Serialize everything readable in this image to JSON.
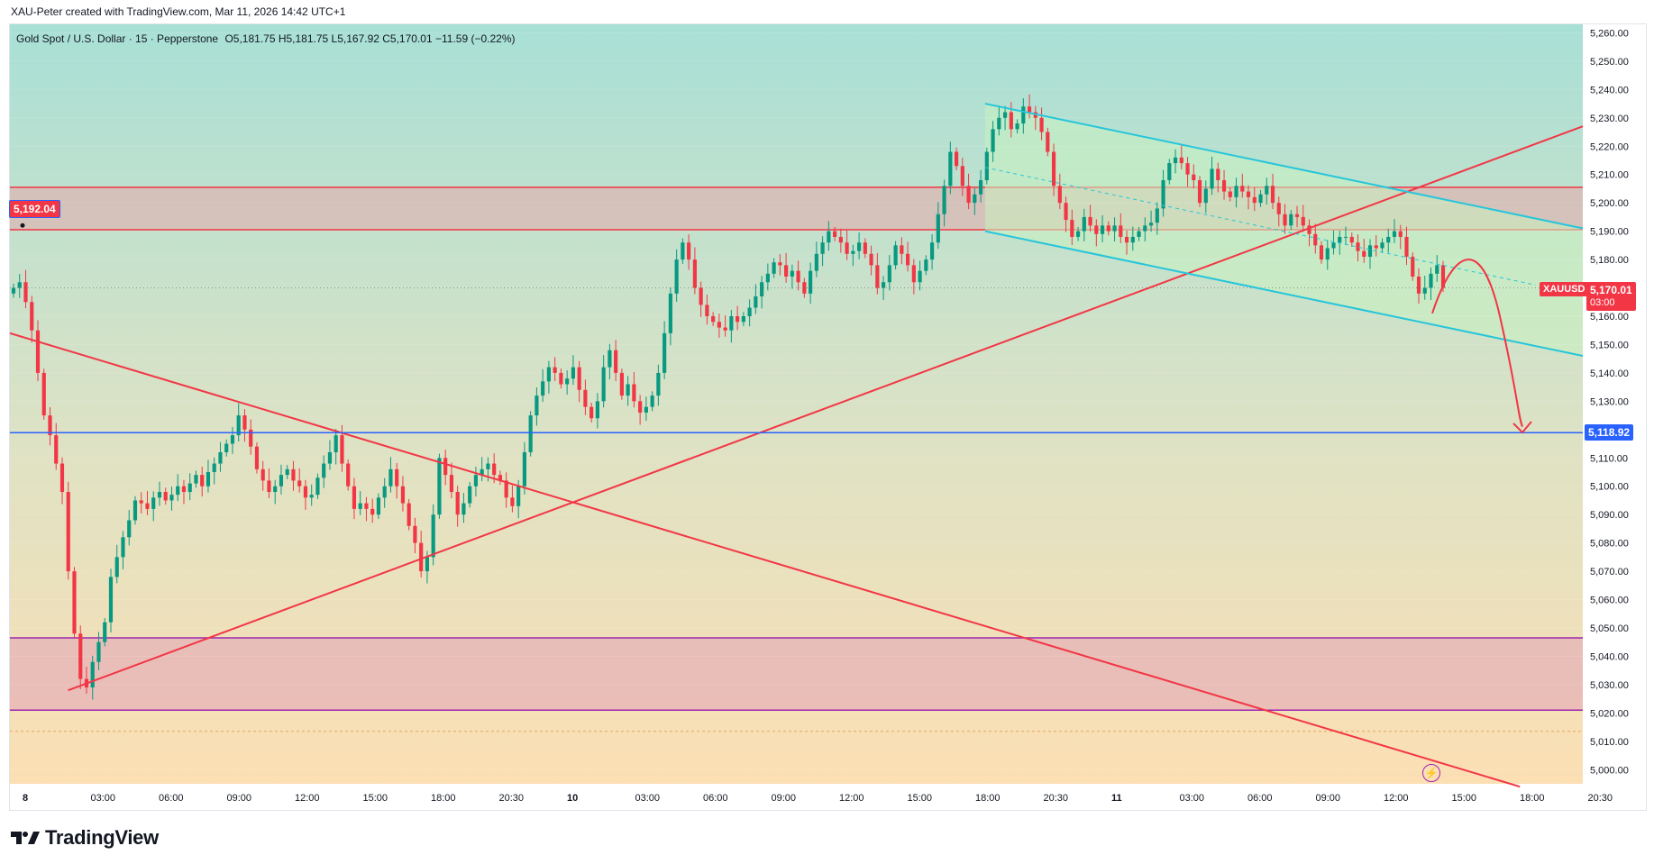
{
  "header": {
    "credit": "XAU-Peter created with TradingView.com, Mar 11, 2026 14:42 UTC+1"
  },
  "info": {
    "symbol_line": "Gold Spot / U.S. Dollar · 15 · Pepperstone",
    "ohlc": "O5,181.75  H5,181.75  L5,167.92  C5,170.01  −11.59 (−0.22%)"
  },
  "footer": {
    "brand": "TradingView",
    "logo_icon": "tradingview-logo-icon"
  },
  "colors": {
    "bg_top": "#a8e0d6",
    "bg_bottom": "#fbe0b4",
    "up": "#089981",
    "down": "#f23645",
    "red_line": "#f23645",
    "cyan_line": "#26c6da",
    "blue_line": "#2962ff",
    "purple_line": "#9c27b0",
    "resistance_zone": "#e8b8b8",
    "support_zone": "#e8b8c8"
  },
  "chart_data": {
    "type": "candlestick",
    "symbol": "XAUUSD",
    "interval": "15",
    "y_axis": {
      "ticks": [
        "5,260.00",
        "5,250.00",
        "5,240.00",
        "5,230.00",
        "5,220.00",
        "5,210.00",
        "5,200.00",
        "5,190.00",
        "5,180.00",
        "5,170.00",
        "5,160.00",
        "5,150.00",
        "5,140.00",
        "5,130.00",
        "5,120.00",
        "5,110.00",
        "5,100.00",
        "5,090.00",
        "5,080.00",
        "5,070.00",
        "5,060.00",
        "5,050.00",
        "5,040.00",
        "5,030.00",
        "5,020.00",
        "5,010.00",
        "5,000.00"
      ],
      "range": [
        4995,
        5263
      ]
    },
    "x_axis": {
      "ticks": [
        "8",
        "03:00",
        "06:00",
        "09:00",
        "12:00",
        "15:00",
        "18:00",
        "20:30",
        "10",
        "03:00",
        "06:00",
        "09:00",
        "12:00",
        "15:00",
        "18:00",
        "20:30",
        "11",
        "03:00",
        "06:00",
        "09:00",
        "12:00",
        "15:00",
        "18:00",
        "20:30"
      ],
      "bold_ticks": [
        "8",
        "10",
        "11"
      ]
    },
    "last_price": {
      "label": "XAUUSD",
      "value": "5,170.01",
      "countdown": "03:00",
      "price": 5170.01
    },
    "left_price_tag": {
      "value": "5,192.04",
      "price": 5192.04
    },
    "blue_level": {
      "value": "5,118.92",
      "price": 5118.92
    },
    "resistance_zone": [
      5190.5,
      5205.5
    ],
    "support_zone": [
      5021,
      5046.5
    ],
    "dashed_level": 5013.5,
    "trendlines": [
      {
        "name": "rising-trendline",
        "from": [
          0.037,
          5028
        ],
        "to": [
          1.0,
          5227
        ]
      },
      {
        "name": "falling-trendline",
        "from": [
          0.0,
          5154
        ],
        "to": [
          0.96,
          4994
        ]
      }
    ],
    "channel": {
      "upper": {
        "from": [
          0.62,
          5235
        ],
        "to": [
          1.0,
          5191
        ]
      },
      "lower": {
        "from": [
          0.62,
          5190
        ],
        "to": [
          1.0,
          5146
        ]
      },
      "mid": {
        "from": [
          0.62,
          5212.5
        ],
        "to": [
          0.97,
          5171
        ]
      }
    },
    "forecast_target": 5118.92,
    "closes": [
      5170,
      5172,
      5165,
      5155,
      5140,
      5125,
      5118,
      5108,
      5098,
      5070,
      5048,
      5032,
      5029,
      5038,
      5045,
      5052,
      5068,
      5075,
      5082,
      5088,
      5095,
      5094,
      5092,
      5096,
      5098,
      5095,
      5097,
      5100,
      5098,
      5101,
      5104,
      5100,
      5105,
      5108,
      5112,
      5115,
      5118,
      5125,
      5120,
      5114,
      5106,
      5102,
      5098,
      5100,
      5104,
      5106,
      5102,
      5100,
      5096,
      5097,
      5103,
      5108,
      5112,
      5118,
      5108,
      5100,
      5092,
      5094,
      5092,
      5090,
      5096,
      5100,
      5106,
      5100,
      5094,
      5086,
      5080,
      5070,
      5075,
      5090,
      5110,
      5104,
      5098,
      5090,
      5094,
      5100,
      5104,
      5106,
      5108,
      5104,
      5102,
      5096,
      5093,
      5100,
      5112,
      5125,
      5132,
      5137,
      5142,
      5140,
      5136,
      5138,
      5142,
      5134,
      5128,
      5124,
      5130,
      5142,
      5148,
      5140,
      5132,
      5136,
      5130,
      5126,
      5128,
      5132,
      5140,
      5154,
      5168,
      5180,
      5186,
      5180,
      5170,
      5164,
      5160,
      5158,
      5156,
      5155,
      5160,
      5158,
      5160,
      5163,
      5167,
      5172,
      5175,
      5179,
      5178,
      5174,
      5176,
      5172,
      5168,
      5176,
      5182,
      5186,
      5190,
      5188,
      5186,
      5182,
      5183,
      5186,
      5182,
      5178,
      5170,
      5172,
      5178,
      5185,
      5182,
      5178,
      5172,
      5176,
      5180,
      5186,
      5196,
      5206,
      5218,
      5213,
      5206,
      5200,
      5203,
      5208,
      5218,
      5226,
      5230,
      5232,
      5226,
      5228,
      5234,
      5232,
      5230,
      5225,
      5218,
      5206,
      5200,
      5194,
      5188,
      5190,
      5195,
      5192,
      5189,
      5192,
      5190,
      5192,
      5188,
      5186,
      5188,
      5190,
      5192,
      5193,
      5198,
      5208,
      5214,
      5216,
      5214,
      5210,
      5208,
      5200,
      5205,
      5212,
      5208,
      5204,
      5202,
      5206,
      5204,
      5202,
      5200,
      5203,
      5206,
      5200,
      5196,
      5192,
      5196,
      5195,
      5192,
      5189,
      5185,
      5180,
      5184,
      5186,
      5188,
      5188,
      5186,
      5183,
      5181,
      5185,
      5184,
      5186,
      5188,
      5190,
      5188,
      5181,
      5174,
      5168,
      5170,
      5175,
      5178,
      5170.01
    ]
  }
}
